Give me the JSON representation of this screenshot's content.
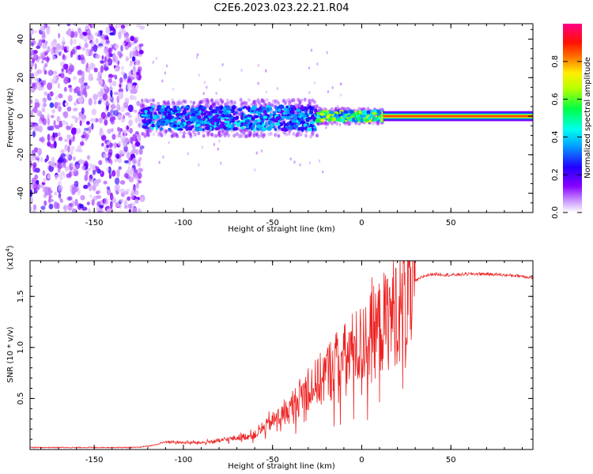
{
  "title": "C2E6.2023.023.22.21.R04",
  "colors": {
    "snr_line": "#ee2222",
    "background": "#ffffff"
  },
  "chart_data": [
    {
      "type": "heatmap",
      "xlabel": "Height of straight line (km)",
      "ylabel": "Frequency (Hz)",
      "xlim": [
        -186,
        96
      ],
      "ylim": [
        -50,
        48
      ],
      "xticks": [
        -150,
        -100,
        -50,
        0,
        50
      ],
      "yticks": [
        -40,
        -20,
        0,
        20,
        40
      ],
      "colorbar": {
        "label": "Normalized spectral amplitude",
        "range": [
          0,
          1
        ],
        "ticks": [
          "0.0",
          "0.2",
          "0.4",
          "0.6",
          "0.8"
        ],
        "colormap": "rainbow (violet-blue-cyan-green-yellow-orange-red-magenta)"
      },
      "regions": [
        {
          "x_range": [
            -186,
            -123
          ],
          "description": "broadband noise",
          "freq_range": [
            -50,
            48
          ],
          "amplitude": 0.1
        },
        {
          "x_range": [
            -123,
            -25
          ],
          "description": "scattered band",
          "freq_center": -1,
          "freq_halfwidth": 6,
          "amplitude": 0.35
        },
        {
          "x_range": [
            -25,
            12
          ],
          "description": "narrowing band",
          "freq_center": 0,
          "freq_halfwidth": 2.5,
          "amplitude": 0.6
        },
        {
          "x_range": [
            12,
            96
          ],
          "description": "narrow peak",
          "freq_center": 0,
          "freq_halfwidth": 1.5,
          "amplitude": 0.9
        }
      ]
    },
    {
      "type": "line",
      "xlabel": "Height of straight line (km)",
      "ylabel": "SNR (10 * v/v)",
      "y_multiplier": "(x10^4)",
      "xlim": [
        -186,
        96
      ],
      "ylim": [
        0,
        1.85
      ],
      "xticks": [
        -150,
        -100,
        -50,
        0,
        50
      ],
      "yticks": [
        "0.5",
        "1.0",
        "1.5"
      ],
      "series": [
        {
          "x": [
            -186,
            -150,
            -125,
            -115,
            -110,
            -100,
            -90,
            -80,
            -70,
            -60,
            -55,
            -50,
            -45,
            -40,
            -35,
            -30,
            -25,
            -20,
            -15,
            -10,
            -5,
            0,
            5,
            10,
            15,
            20,
            25,
            30,
            35,
            40,
            50,
            60,
            70,
            80,
            90,
            96
          ],
          "y": [
            0.02,
            0.02,
            0.02,
            0.05,
            0.08,
            0.07,
            0.07,
            0.09,
            0.12,
            0.15,
            0.22,
            0.3,
            0.35,
            0.42,
            0.55,
            0.65,
            0.7,
            0.8,
            0.9,
            0.95,
            1.05,
            1.1,
            1.2,
            1.3,
            1.4,
            1.5,
            1.58,
            1.65,
            1.7,
            1.72,
            1.71,
            1.72,
            1.72,
            1.71,
            1.7,
            1.68
          ]
        }
      ]
    }
  ]
}
